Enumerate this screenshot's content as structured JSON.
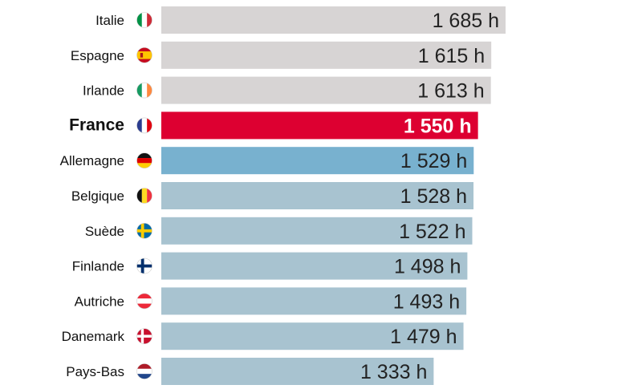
{
  "chart_data": {
    "type": "bar",
    "orientation": "horizontal",
    "title": "",
    "xlabel": "",
    "ylabel": "",
    "unit": "h",
    "xlim": [
      0,
      1700
    ],
    "grid": false,
    "legend": "none",
    "categories": [
      "Italie",
      "Espagne",
      "Irlande",
      "France",
      "Allemagne",
      "Belgique",
      "Suède",
      "Finlande",
      "Autriche",
      "Danemark",
      "Pays-Bas"
    ],
    "values": [
      1685,
      1615,
      1613,
      1550,
      1529,
      1528,
      1522,
      1498,
      1493,
      1479,
      1333
    ],
    "value_labels": [
      "1 685 h",
      "1 615 h",
      "1 613 h",
      "1 550 h",
      "1 529 h",
      "1 528 h",
      "1 522 h",
      "1 498 h",
      "1 493 h",
      "1 479 h",
      "1 333 h"
    ],
    "flags": [
      "flag-italy-icon",
      "flag-spain-icon",
      "flag-ireland-icon",
      "flag-france-icon",
      "flag-germany-icon",
      "flag-belgium-icon",
      "flag-sweden-icon",
      "flag-finland-icon",
      "flag-austria-icon",
      "flag-denmark-icon",
      "flag-netherlands-icon"
    ],
    "highlight": "France",
    "colors": {
      "above_france": "#d7d4d4",
      "france": "#dd0031",
      "germany": "#78b1cf",
      "below_france": "#a8c3d0",
      "value_text_dark": "#222222",
      "value_text_light": "#ffffff",
      "label_text": "#111111"
    }
  }
}
